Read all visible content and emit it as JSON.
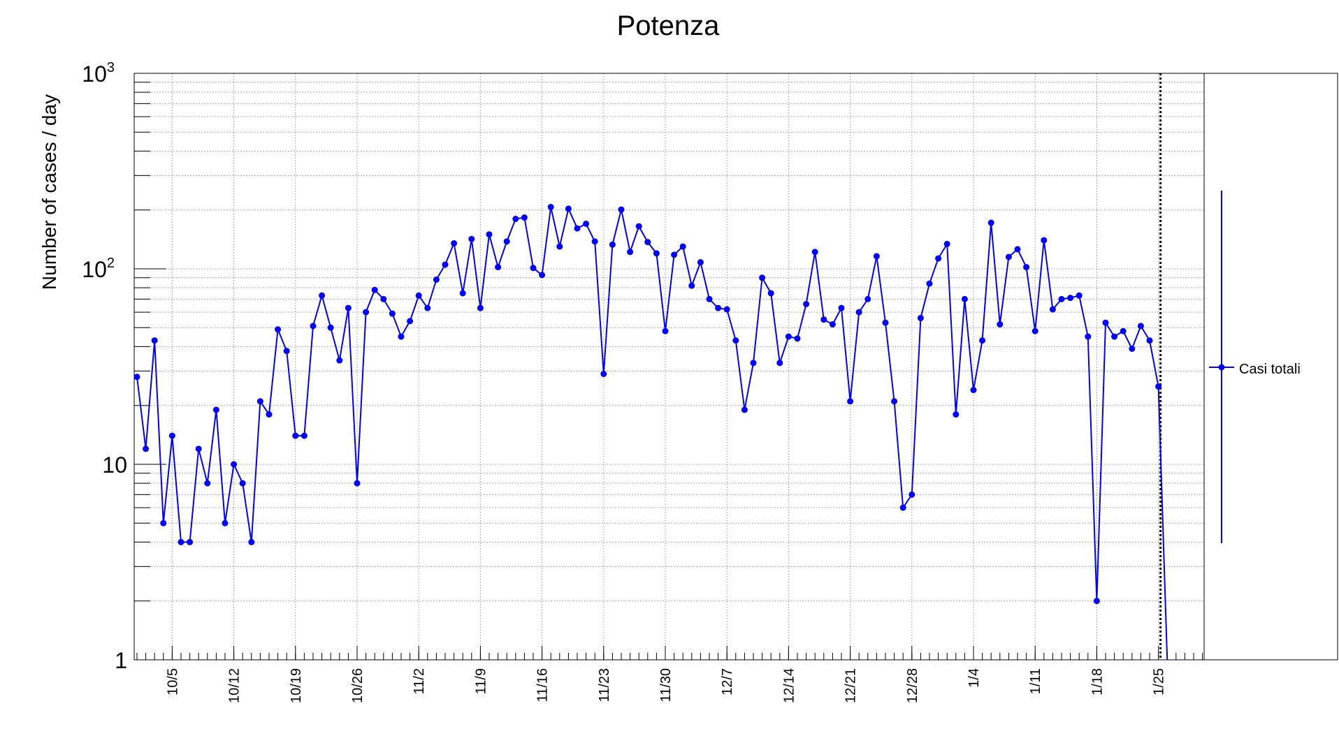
{
  "chart_data": {
    "type": "line",
    "title": "Potenza",
    "xlabel": "",
    "ylabel": "Number of cases / day",
    "y_scale": "log",
    "ylim": [
      1,
      1000
    ],
    "y_tick_labels": [
      "1",
      "10",
      "10²",
      "10³"
    ],
    "x_start": "2020-10-01",
    "x_tick_labels": [
      "10/5",
      "10/12",
      "10/19",
      "10/26",
      "11/2",
      "11/9",
      "11/16",
      "11/23",
      "11/30",
      "12/7",
      "12/14",
      "12/21",
      "12/28",
      "1/4",
      "1/11",
      "1/18",
      "1/25"
    ],
    "grid": true,
    "legend_position": "right",
    "marker_line": "1/25",
    "series": [
      {
        "name": "Casi totali",
        "color": "#0000ff",
        "values": [
          28,
          12,
          43,
          5,
          14,
          4,
          4,
          12,
          8,
          19,
          5,
          10,
          8,
          4,
          21,
          18,
          49,
          38,
          14,
          14,
          51,
          73,
          50,
          34,
          63,
          8,
          60,
          78,
          70,
          59,
          45,
          54,
          73,
          63,
          88,
          105,
          135,
          75,
          142,
          63,
          150,
          102,
          138,
          180,
          183,
          101,
          93,
          207,
          130,
          203,
          161,
          170,
          138,
          29,
          133,
          201,
          122,
          165,
          137,
          120,
          48,
          118,
          130,
          82,
          108,
          70,
          63,
          62,
          43,
          19,
          33,
          90,
          75,
          33,
          45,
          44,
          66,
          122,
          55,
          52,
          63,
          21,
          60,
          70,
          116,
          53,
          21,
          6,
          7,
          56,
          84,
          113,
          134,
          18,
          70,
          24,
          43,
          172,
          52,
          115,
          126,
          102,
          48,
          140,
          62,
          70,
          71,
          73,
          45,
          2,
          53,
          45,
          48,
          39,
          51,
          43,
          25,
          1
        ]
      }
    ]
  },
  "legend": {
    "entry_label": "Casi totali"
  }
}
